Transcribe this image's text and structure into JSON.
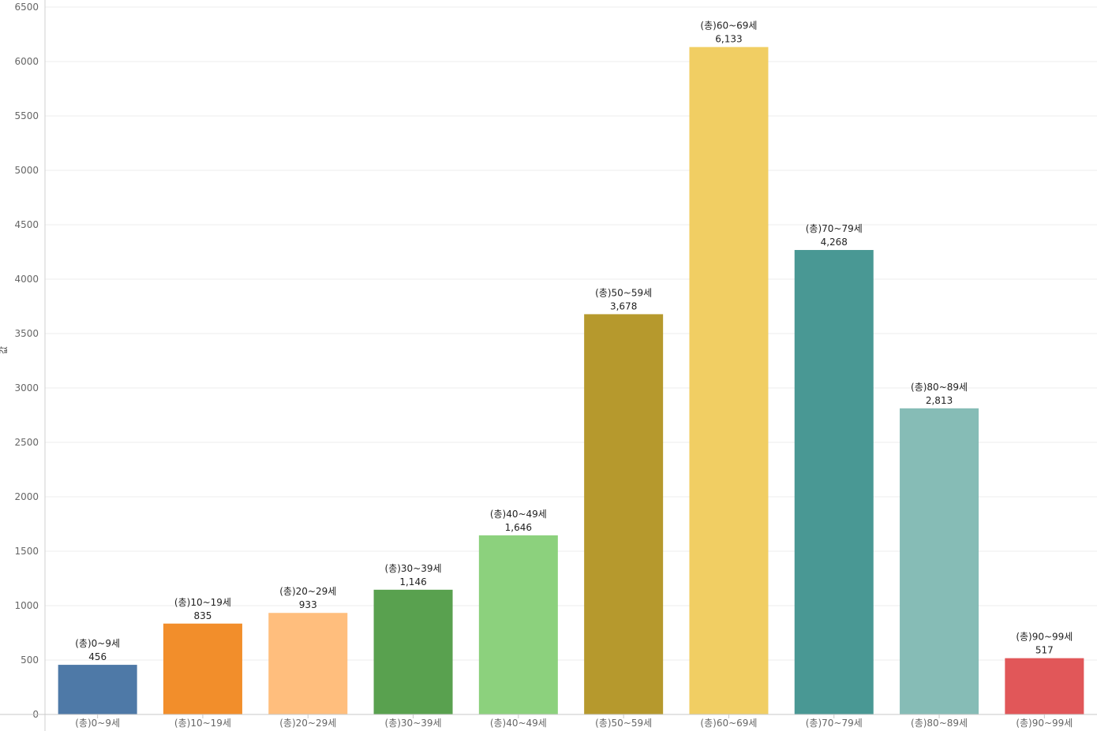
{
  "chart_data": {
    "type": "bar",
    "title": "",
    "xlabel": "",
    "ylabel": "값",
    "ylim": [
      0,
      6500
    ],
    "yticks": [
      0,
      500,
      1000,
      1500,
      2000,
      2500,
      3000,
      3500,
      4000,
      4500,
      5000,
      5500,
      6000,
      6500
    ],
    "grid": true,
    "categories": [
      "(총)0~9세",
      "(총)10~19세",
      "(총)20~29세",
      "(총)30~39세",
      "(총)40~49세",
      "(총)50~59세",
      "(총)60~69세",
      "(총)70~79세",
      "(총)80~89세",
      "(총)90~99세"
    ],
    "values": [
      456,
      835,
      933,
      1146,
      1646,
      3678,
      6133,
      4268,
      2813,
      517
    ],
    "value_labels": [
      "456",
      "835",
      "933",
      "1,146",
      "1,646",
      "3,678",
      "6,133",
      "4,268",
      "2,813",
      "517"
    ],
    "colors": [
      "#4e79a7",
      "#f28e2b",
      "#ffbe7d",
      "#59a14f",
      "#8cd17d",
      "#b6992d",
      "#f1ce63",
      "#499894",
      "#86bcb6",
      "#e15759"
    ]
  }
}
